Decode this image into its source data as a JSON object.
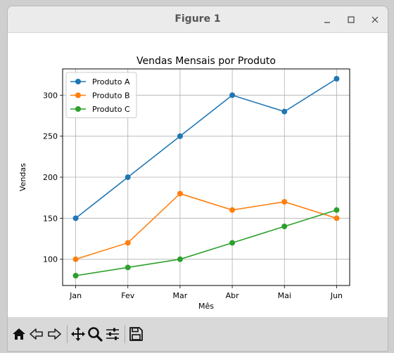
{
  "window": {
    "title": "Figure 1"
  },
  "toolbar": {
    "icons": [
      "home-icon",
      "back-arrow-icon",
      "forward-arrow-icon",
      "pan-icon",
      "zoom-icon",
      "configure-subplots-icon",
      "save-icon"
    ]
  },
  "chart_data": {
    "type": "line",
    "title": "Vendas Mensais por Produto",
    "xlabel": "Mês",
    "ylabel": "Vendas",
    "categories": [
      "Jan",
      "Fev",
      "Mar",
      "Abr",
      "Mai",
      "Jun"
    ],
    "series": [
      {
        "name": "Produto A",
        "color": "#1f77b4",
        "values": [
          150,
          200,
          250,
          300,
          280,
          320
        ]
      },
      {
        "name": "Produto B",
        "color": "#ff7f0e",
        "values": [
          100,
          120,
          180,
          160,
          170,
          150
        ]
      },
      {
        "name": "Produto C",
        "color": "#2ca02c",
        "values": [
          80,
          90,
          100,
          120,
          140,
          160
        ]
      }
    ],
    "yticks": [
      100,
      150,
      200,
      250,
      300
    ],
    "ylim": [
      68,
      332
    ],
    "grid": true,
    "legend_position": "top-left",
    "marker": "circle"
  }
}
